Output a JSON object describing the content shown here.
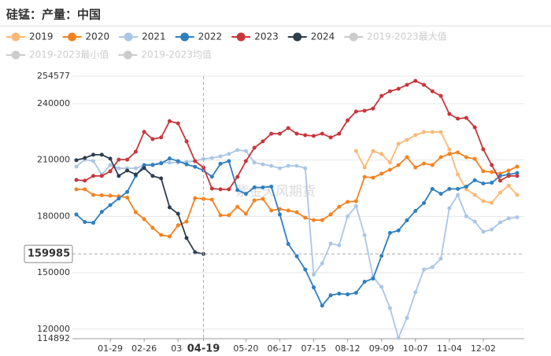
{
  "chart_data": {
    "type": "line",
    "title": "硅锰：产量：中国",
    "watermark": "紫金天风期货",
    "categories": [
      null,
      null,
      null,
      null,
      "01-29",
      null,
      null,
      null,
      "02-26",
      null,
      null,
      null,
      "03-",
      null,
      null,
      "04-19",
      null,
      null,
      null,
      null,
      "05-20",
      null,
      null,
      null,
      "06-17",
      null,
      null,
      null,
      "07-15",
      null,
      null,
      null,
      "08-12",
      null,
      null,
      null,
      "09-09",
      null,
      null,
      null,
      "10-07",
      null,
      null,
      null,
      "11-04",
      null,
      null,
      null,
      "12-02",
      null,
      null,
      null,
      null
    ],
    "ylim": [
      114892,
      254577
    ],
    "yticks": [
      114892,
      120000,
      150000,
      180000,
      210000,
      240000,
      254577
    ],
    "grid": true,
    "pointer_series": 5,
    "series": [
      {
        "name": "2019",
        "color": "#fbb874",
        "values": [
          null,
          null,
          null,
          null,
          null,
          null,
          null,
          null,
          null,
          null,
          null,
          null,
          null,
          null,
          null,
          null,
          null,
          null,
          null,
          null,
          null,
          null,
          null,
          null,
          null,
          null,
          null,
          null,
          null,
          null,
          null,
          null,
          null,
          214800,
          206000,
          214800,
          213200,
          208600,
          218600,
          220700,
          223200,
          224900,
          224900,
          224900,
          215700,
          202300,
          194400,
          191400,
          188100,
          187200,
          192700,
          196400,
          191400
        ]
      },
      {
        "name": "2020",
        "color": "#f5821f",
        "values": [
          194400,
          194400,
          191400,
          191200,
          191000,
          190700,
          190000,
          182200,
          178500,
          173900,
          170100,
          169300,
          175200,
          177200,
          189700,
          189300,
          188900,
          180600,
          180600,
          185100,
          181400,
          188500,
          189300,
          183100,
          183900,
          183100,
          182200,
          179300,
          178000,
          178000,
          181000,
          185100,
          187700,
          188100,
          201000,
          200600,
          202700,
          204800,
          207300,
          211500,
          206000,
          208100,
          207300,
          211500,
          213200,
          214000,
          211500,
          210600,
          204000,
          203600,
          202700,
          204400,
          206500
        ]
      },
      {
        "name": "2021",
        "color": "#aac6e6",
        "values": [
          206500,
          210200,
          209400,
          202300,
          207300,
          205600,
          205600,
          205600,
          207300,
          207700,
          208600,
          208600,
          208600,
          209000,
          209400,
          210600,
          211100,
          211900,
          213200,
          215300,
          214800,
          208600,
          207700,
          206900,
          205600,
          206900,
          206900,
          205600,
          149000,
          155000,
          165500,
          164600,
          180000,
          185500,
          170000,
          147700,
          142500,
          131200,
          115300,
          126000,
          139600,
          151700,
          153000,
          157500,
          184300,
          191400,
          180100,
          177200,
          171800,
          173000,
          176800,
          178900,
          179500
        ]
      },
      {
        "name": "2022",
        "color": "#2e7fbf",
        "values": [
          181000,
          177000,
          176600,
          182400,
          186000,
          189500,
          193000,
          201500,
          207300,
          207300,
          208200,
          210800,
          209400,
          207700,
          206400,
          204400,
          201100,
          208000,
          209400,
          194000,
          192000,
          195400,
          195400,
          195800,
          181000,
          165300,
          158800,
          151700,
          142200,
          132500,
          138000,
          138900,
          138500,
          139300,
          145200,
          146900,
          159000,
          171200,
          172500,
          177900,
          182900,
          187100,
          194600,
          192000,
          194600,
          194600,
          195800,
          199200,
          197500,
          197900,
          201500,
          202300,
          203100
        ]
      },
      {
        "name": "2023",
        "color": "#c8363b",
        "values": [
          199400,
          199000,
          201500,
          201500,
          204000,
          210200,
          210200,
          214400,
          225000,
          221100,
          222000,
          230700,
          229500,
          219900,
          209400,
          206000,
          194800,
          194400,
          194400,
          201000,
          209400,
          216500,
          219900,
          224000,
          224000,
          227000,
          224000,
          223200,
          222800,
          224000,
          222000,
          224000,
          231100,
          235800,
          236200,
          237400,
          244100,
          246600,
          247900,
          250000,
          252100,
          250000,
          246600,
          244100,
          234500,
          232000,
          232400,
          227400,
          215700,
          207300,
          199000,
          201500,
          201500
        ]
      },
      {
        "name": "2024",
        "color": "#2d3e50",
        "values": [
          209900,
          211100,
          212800,
          212800,
          210700,
          201500,
          204400,
          202300,
          205700,
          201500,
          200200,
          184800,
          181400,
          168500,
          160900,
          159985,
          null,
          null,
          null,
          null,
          null,
          null,
          null,
          null,
          null,
          null,
          null,
          null,
          null,
          null,
          null,
          null,
          null,
          null,
          null,
          null,
          null,
          null,
          null,
          null,
          null,
          null,
          null,
          null,
          null,
          null,
          null,
          null,
          null,
          null,
          null,
          null,
          null
        ]
      }
    ],
    "inactive_legend": [
      "2019-2023最大值",
      "2019-2023最小值",
      "2019-2023均值"
    ],
    "inactive_color": "#cccccc"
  }
}
